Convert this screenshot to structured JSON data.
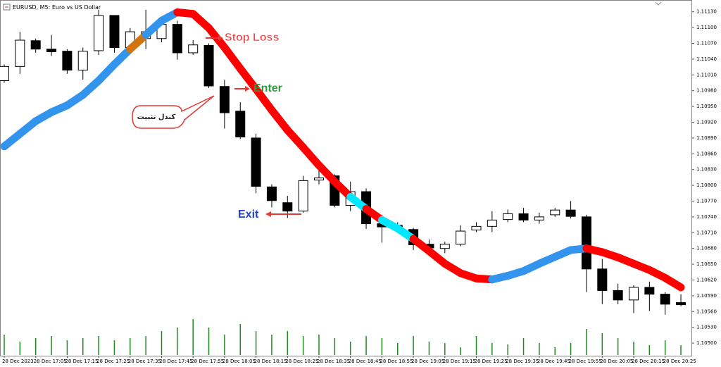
{
  "chart_data": {
    "type": "candlestick",
    "title": "EURUSD, M5:  Euro vs US Dollar",
    "categories": [
      "28 Dec 2023",
      null,
      "28 Dec 17:05",
      null,
      "28 Dec 17:15",
      null,
      "28 Dec 17:25",
      null,
      "28 Dec 17:35",
      null,
      "28 Dec 17:45",
      null,
      "28 Dec 17:55",
      null,
      "28 Dec 18:05",
      null,
      "28 Dec 18:15",
      null,
      "28 Dec 18:25",
      null,
      "28 Dec 18:35",
      null,
      "28 Dec 18:45",
      null,
      "28 Dec 18:55",
      null,
      "28 Dec 19:05",
      null,
      "28 Dec 19:15",
      null,
      "28 Dec 19:25",
      null,
      "28 Dec 19:35",
      null,
      "28 Dec 19:45",
      null,
      "28 Dec 19:55",
      null,
      "28 Dec 20:05",
      null,
      "28 Dec 20:15",
      null,
      "28 Dec 20:25",
      null
    ],
    "open": [
      1.10999,
      1.11026,
      1.11075,
      1.11059,
      1.11055,
      1.11019,
      1.11056,
      1.11123,
      1.11062,
      1.11079,
      1.11079,
      1.11106,
      1.11052,
      1.11066,
      1.10988,
      1.10941,
      1.1089,
      1.10797,
      1.10767,
      1.10751,
      1.1081,
      1.10818,
      1.10762,
      1.10788,
      1.10727,
      1.10724,
      1.10716,
      1.10688,
      1.1068,
      1.10688,
      1.10715,
      1.10722,
      1.10735,
      1.10746,
      1.10734,
      1.10744,
      1.10753,
      1.1074,
      1.10641,
      1.106,
      1.10582,
      1.10606,
      1.10593,
      1.10577
    ],
    "high": [
      1.1103,
      1.11092,
      1.11079,
      1.11086,
      1.11059,
      1.11062,
      1.11134,
      1.11123,
      1.11099,
      1.11134,
      1.11113,
      1.11113,
      1.11076,
      1.1107,
      1.11001,
      1.10958,
      1.10898,
      1.10802,
      1.1078,
      1.10818,
      1.10831,
      1.10821,
      1.10807,
      1.10794,
      1.1074,
      1.1073,
      1.10719,
      1.10697,
      1.10693,
      1.10724,
      1.1073,
      1.10751,
      1.10754,
      1.10757,
      1.10748,
      1.10757,
      1.1077,
      1.10744,
      1.1066,
      1.10613,
      1.1061,
      1.10617,
      1.10597,
      1.10593
    ],
    "low": [
      1.10995,
      1.11012,
      1.11052,
      1.11046,
      1.11012,
      1.11001,
      1.11048,
      1.11052,
      1.11052,
      1.11059,
      1.11072,
      1.11039,
      1.11048,
      1.10985,
      1.10908,
      1.10888,
      1.10785,
      1.10758,
      1.10738,
      1.10748,
      1.10802,
      1.10758,
      1.10751,
      1.10717,
      1.10691,
      1.10711,
      1.10677,
      1.10671,
      1.10671,
      1.10684,
      1.10711,
      1.10711,
      1.1073,
      1.1073,
      1.10727,
      1.1074,
      1.10737,
      1.10597,
      1.10574,
      1.10574,
      1.10557,
      1.10561,
      1.10554,
      1.1057
    ],
    "close": [
      1.11026,
      1.11076,
      1.11059,
      1.11054,
      1.11019,
      1.11055,
      1.11123,
      1.11062,
      1.11092,
      1.11092,
      1.11106,
      1.11052,
      1.11067,
      1.10989,
      1.10938,
      1.10892,
      1.10798,
      1.10771,
      1.10751,
      1.10809,
      1.10814,
      1.10762,
      1.10788,
      1.10727,
      1.10721,
      1.10716,
      1.10687,
      1.10681,
      1.10688,
      1.10713,
      1.10722,
      1.10734,
      1.10746,
      1.10734,
      1.1074,
      1.10753,
      1.10741,
      1.10641,
      1.106,
      1.10582,
      1.10606,
      1.10593,
      1.10574,
      1.10573
    ],
    "ma": {
      "values": [
        1.10874,
        1.10898,
        1.10922,
        1.10939,
        1.10952,
        1.10972,
        1.10999,
        1.1103,
        1.11059,
        1.11086,
        1.11113,
        1.11129,
        1.11126,
        1.11099,
        1.11062,
        1.11022,
        1.10983,
        1.10943,
        1.10905,
        1.10872,
        1.10838,
        1.10807,
        1.10778,
        1.10755,
        1.10734,
        1.10718,
        1.10698,
        1.10675,
        1.10651,
        1.10633,
        1.10623,
        1.10621,
        1.10628,
        1.10637,
        1.10651,
        1.10664,
        1.10677,
        1.1068,
        1.10673,
        1.10663,
        1.10651,
        1.10639,
        1.10624,
        1.10606
      ],
      "colors": [
        "#3394ee",
        "#3394ee",
        "#3394ee",
        "#3394ee",
        "#3394ee",
        "#3394ee",
        "#3394ee",
        "#3394ee",
        "#3394ee",
        "#d4740e",
        "#3394ee",
        "#3394ee",
        "#ff0000",
        "#ff0000",
        "#ff0000",
        "#ff0000",
        "#ff0000",
        "#ff0000",
        "#ff0000",
        "#ff0000",
        "#ff0000",
        "#ff0000",
        "#ff0000",
        "#00e8ff",
        "#ff0000",
        "#00e8ff",
        "#00e8ff",
        "#ff0000",
        "#ff0000",
        "#ff0000",
        "#ff0000",
        "#ff0000",
        "#3394ee",
        "#3394ee",
        "#3394ee",
        "#3394ee",
        "#3394ee",
        "#3394ee",
        "#ff0000",
        "#ff0000",
        "#ff0000",
        "#ff0000",
        "#ff0000",
        "#ff0000"
      ]
    },
    "volume": [
      30,
      20,
      25,
      28,
      22,
      25,
      28,
      22,
      25,
      28,
      35,
      40,
      52,
      40,
      30,
      45,
      35,
      30,
      35,
      28,
      30,
      25,
      20,
      28,
      25,
      18,
      28,
      20,
      18,
      12,
      28,
      18,
      16,
      25,
      18,
      12,
      18,
      38,
      32,
      25,
      20,
      15,
      22,
      15
    ],
    "vlim": [
      0,
      100
    ],
    "volume_color": "#1f8a1f",
    "ylim": [
      1.10476,
      1.11143
    ],
    "yticks": [
      {
        "value": 1.1113,
        "label": "1.11130"
      },
      {
        "value": 1.111,
        "label": "1.11100"
      },
      {
        "value": 1.1107,
        "label": "1.11070"
      },
      {
        "value": 1.1104,
        "label": "1.11040"
      },
      {
        "value": 1.1101,
        "label": "1.11010"
      },
      {
        "value": 1.1098,
        "label": "1.10980"
      },
      {
        "value": 1.1095,
        "label": "1.10950"
      },
      {
        "value": 1.1092,
        "label": "1.10920"
      },
      {
        "value": 1.1089,
        "label": "1.10890"
      },
      {
        "value": 1.1086,
        "label": "1.10860"
      },
      {
        "value": 1.1083,
        "label": "1.10830"
      },
      {
        "value": 1.108,
        "label": "1.10800"
      },
      {
        "value": 1.1077,
        "label": "1.10770"
      },
      {
        "value": 1.1074,
        "label": "1.10740"
      },
      {
        "value": 1.1071,
        "label": "1.10710"
      },
      {
        "value": 1.1068,
        "label": "1.10680"
      },
      {
        "value": 1.1065,
        "label": "1.10650"
      },
      {
        "value": 1.1062,
        "label": "1.10620"
      },
      {
        "value": 1.1059,
        "label": "1.10590"
      },
      {
        "value": 1.1056,
        "label": "1.10560"
      },
      {
        "value": 1.1053,
        "label": "1.10530"
      },
      {
        "value": 1.105,
        "label": "1.10500"
      }
    ],
    "annotations": [
      "Stop Loss",
      "Enter",
      "کندل تثبیت",
      "Exit"
    ]
  }
}
